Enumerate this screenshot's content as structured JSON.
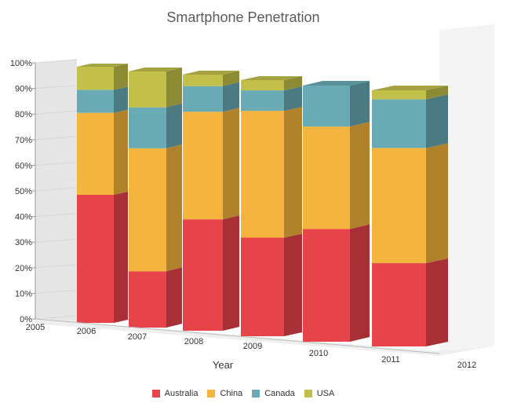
{
  "chart_data": {
    "type": "bar",
    "stacked": "percent",
    "title": "Smartphone Penetration",
    "xlabel": "Year",
    "ylabel": "",
    "ylim": [
      0,
      100
    ],
    "yticks": [
      "0%",
      "10%",
      "20%",
      "30%",
      "40%",
      "50%",
      "60%",
      "70%",
      "80%",
      "90%",
      "100%"
    ],
    "x_axis_labels": [
      "2005",
      "2006",
      "2007",
      "2008",
      "2009",
      "2010",
      "2011",
      "2012"
    ],
    "categories": [
      "2006",
      "2007",
      "2008",
      "2009",
      "2010",
      "2011"
    ],
    "series": [
      {
        "name": "Australia",
        "color": "#E6434A",
        "values": [
          50,
          22,
          43.5,
          38.5,
          44,
          32.5
        ]
      },
      {
        "name": "China",
        "color": "#F5B43D",
        "values": [
          32,
          48,
          42,
          49.5,
          40,
          45
        ]
      },
      {
        "name": "Canada",
        "color": "#6AAAB5",
        "values": [
          9,
          16,
          10,
          8,
          16,
          19
        ]
      },
      {
        "name": "USA",
        "color": "#C2C04A",
        "values": [
          9,
          14,
          4.5,
          4,
          0,
          3.5
        ]
      }
    ],
    "legend_position": "bottom",
    "grid": true,
    "three_d": true
  }
}
